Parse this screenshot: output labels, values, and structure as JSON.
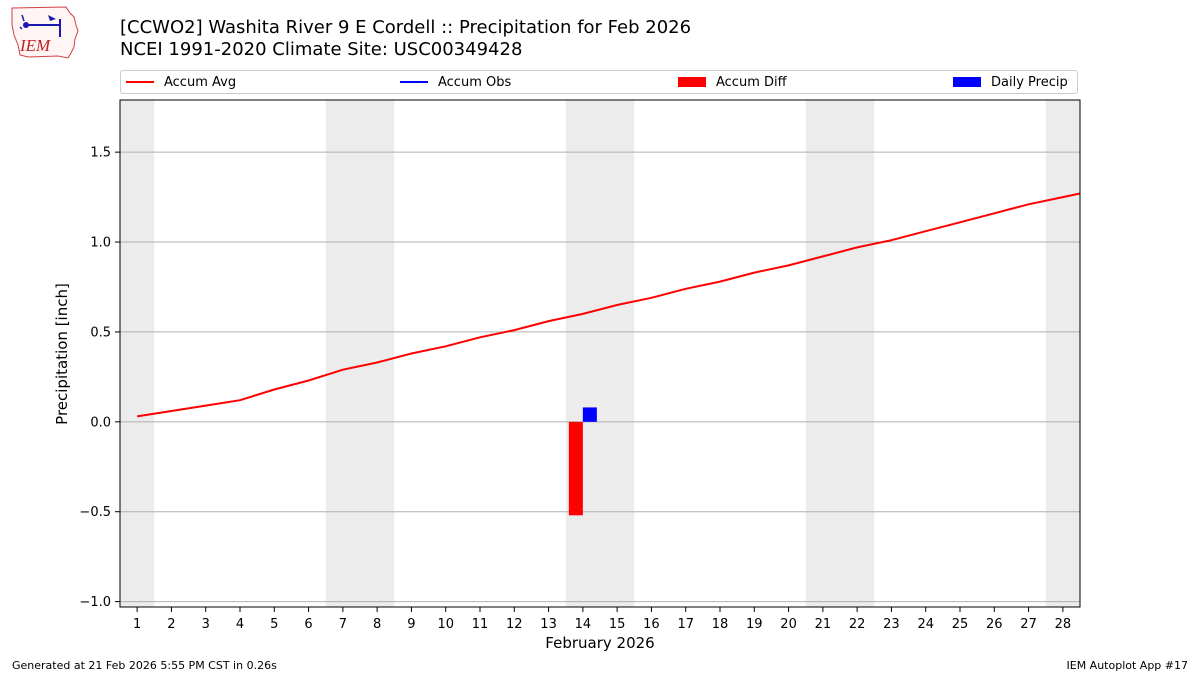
{
  "header": {
    "title_line1": "[CCWO2] Washita River 9 E Cordell :: Precipitation for Feb 2026",
    "title_line2": "NCEI 1991-2020 Climate Site: USC00349428",
    "logo_text": "IEM"
  },
  "legend": {
    "items": [
      {
        "label": "Accum Avg",
        "color": "#ff0000",
        "kind": "line"
      },
      {
        "label": "Accum Obs",
        "color": "#0000ff",
        "kind": "line"
      },
      {
        "label": "Accum Diff",
        "color": "#ff0000",
        "kind": "box"
      },
      {
        "label": "Daily Precip",
        "color": "#0000ff",
        "kind": "box"
      }
    ]
  },
  "footer": {
    "left": "Generated at 21 Feb 2026 5:55 PM CST in 0.26s",
    "right": "IEM Autoplot App #17"
  },
  "chart_data": {
    "type": "line",
    "xlabel": "February 2026",
    "ylabel": "Precipitation [inch]",
    "ylim": [
      -1.03,
      1.79
    ],
    "xlim": [
      0.5,
      28.5
    ],
    "yticks": [
      -1.0,
      -0.5,
      0.0,
      0.5,
      1.0,
      1.5
    ],
    "ytick_labels": [
      "−1.0",
      "−0.5",
      "0.0",
      "0.5",
      "1.0",
      "1.5"
    ],
    "x": [
      1,
      2,
      3,
      4,
      5,
      6,
      7,
      8,
      9,
      10,
      11,
      12,
      13,
      14,
      15,
      16,
      17,
      18,
      19,
      20,
      21,
      22,
      23,
      24,
      25,
      26,
      27,
      28
    ],
    "xtick_labels": [
      "1",
      "2",
      "3",
      "4",
      "5",
      "6",
      "7",
      "8",
      "9",
      "10",
      "11",
      "12",
      "13",
      "14",
      "15",
      "16",
      "17",
      "18",
      "19",
      "20",
      "21",
      "22",
      "23",
      "24",
      "25",
      "26",
      "27",
      "28"
    ],
    "grid": "horizontal",
    "weekend_shading": [
      [
        0.5,
        1.5
      ],
      [
        6.5,
        8.5
      ],
      [
        13.5,
        15.5
      ],
      [
        20.5,
        22.5
      ],
      [
        27.5,
        28.5
      ]
    ],
    "shade_color": "#ececec",
    "series": [
      {
        "name": "Accum Avg",
        "color": "#ff0000",
        "kind": "line",
        "x": [
          1,
          2,
          3,
          4,
          5,
          6,
          7,
          8,
          9,
          10,
          11,
          12,
          13,
          14,
          15,
          16,
          17,
          18,
          19,
          20,
          21,
          22,
          23,
          24,
          25,
          26,
          27,
          28,
          28.5
        ],
        "values": [
          0.03,
          0.06,
          0.09,
          0.12,
          0.18,
          0.23,
          0.29,
          0.33,
          0.38,
          0.42,
          0.47,
          0.51,
          0.56,
          0.6,
          0.65,
          0.69,
          0.74,
          0.78,
          0.83,
          0.87,
          0.92,
          0.97,
          1.01,
          1.06,
          1.11,
          1.16,
          1.21,
          1.25,
          1.27
        ]
      },
      {
        "name": "Accum Diff",
        "color": "#ff0000",
        "kind": "bar",
        "x": [
          14
        ],
        "values": [
          -0.52
        ]
      },
      {
        "name": "Daily Precip",
        "color": "#0000ff",
        "kind": "bar",
        "x": [
          14
        ],
        "values": [
          0.08
        ]
      }
    ]
  }
}
